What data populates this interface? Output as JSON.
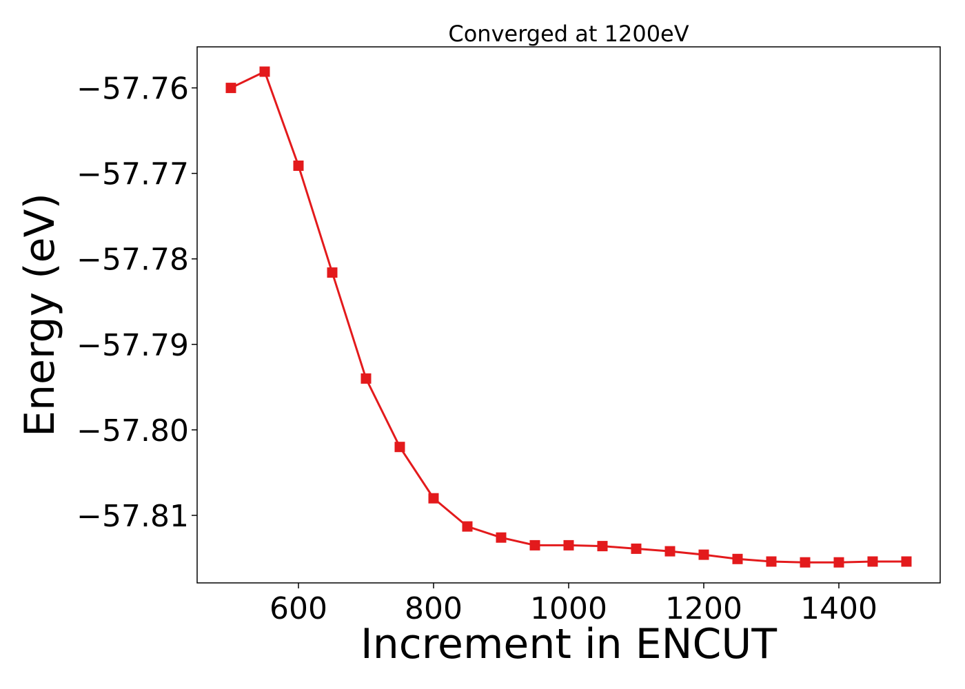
{
  "chart_data": {
    "type": "line",
    "title": "Converged at 1200eV",
    "xlabel": "Increment in ENCUT",
    "ylabel": "Energy (eV)",
    "xlim": [
      450,
      1550
    ],
    "ylim": [
      -57.8179,
      -57.7552
    ],
    "xticks": [
      600,
      800,
      1000,
      1200,
      1400
    ],
    "yticks": [
      -57.76,
      -57.77,
      -57.78,
      -57.79,
      -57.8,
      -57.81
    ],
    "ytick_labels": [
      "−57.76",
      "−57.77",
      "−57.78",
      "−57.79",
      "−57.80",
      "−57.81"
    ],
    "grid": false,
    "series": [
      {
        "color": "#e31a1c",
        "marker": "square",
        "x": [
          500,
          550,
          600,
          650,
          700,
          750,
          800,
          850,
          900,
          950,
          1000,
          1050,
          1100,
          1150,
          1200,
          1250,
          1300,
          1350,
          1400,
          1450,
          1500
        ],
        "y": [
          -57.76,
          -57.7581,
          -57.7691,
          -57.7816,
          -57.794,
          -57.802,
          -57.808,
          -57.8113,
          -57.8126,
          -57.8135,
          -57.8135,
          -57.8136,
          -57.8139,
          -57.8142,
          -57.8146,
          -57.8151,
          -57.8154,
          -57.8155,
          -57.8155,
          -57.8154,
          -57.8154
        ]
      }
    ]
  }
}
